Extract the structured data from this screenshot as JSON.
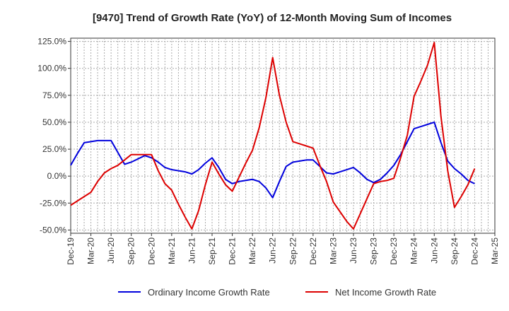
{
  "chart_data": {
    "type": "line",
    "title": "[9470]  Trend of Growth Rate (YoY) of 12-Month Moving Sum of Incomes",
    "xlabel": "",
    "ylabel": "",
    "ylim": [
      -0.53,
      1.28
    ],
    "y_ticks": [
      -0.5,
      -0.25,
      0.0,
      0.25,
      0.5,
      0.75,
      1.0,
      1.25
    ],
    "y_tick_labels": [
      "-50.0%",
      "-25.0%",
      "0.0%",
      "25.0%",
      "50.0%",
      "75.0%",
      "100.0%",
      "125.0%"
    ],
    "x_tick_labels": [
      "Dec-19",
      "Mar-20",
      "Jun-20",
      "Sep-20",
      "Dec-20",
      "Mar-21",
      "Jun-21",
      "Sep-21",
      "Dec-21",
      "Mar-22",
      "Jun-22",
      "Sep-22",
      "Dec-22",
      "Mar-23",
      "Jun-23",
      "Sep-23",
      "Dec-23",
      "Mar-24",
      "Jun-24",
      "Sep-24",
      "Dec-24",
      "Mar-25"
    ],
    "grid": true,
    "legend_position": "bottom",
    "x": [
      "2019-12",
      "2020-01",
      "2020-02",
      "2020-03",
      "2020-04",
      "2020-05",
      "2020-06",
      "2020-07",
      "2020-08",
      "2020-09",
      "2020-10",
      "2020-11",
      "2020-12",
      "2021-01",
      "2021-02",
      "2021-03",
      "2021-04",
      "2021-05",
      "2021-06",
      "2021-07",
      "2021-08",
      "2021-09",
      "2021-10",
      "2021-11",
      "2021-12",
      "2022-01",
      "2022-02",
      "2022-03",
      "2022-04",
      "2022-05",
      "2022-06",
      "2022-07",
      "2022-08",
      "2022-09",
      "2022-10",
      "2022-11",
      "2022-12",
      "2023-01",
      "2023-02",
      "2023-03",
      "2023-04",
      "2023-05",
      "2023-06",
      "2023-07",
      "2023-08",
      "2023-09",
      "2023-10",
      "2023-11",
      "2023-12",
      "2024-01",
      "2024-02",
      "2024-03",
      "2024-04",
      "2024-05",
      "2024-06",
      "2024-07",
      "2024-08",
      "2024-09",
      "2024-10",
      "2024-11",
      "2024-12"
    ],
    "series": [
      {
        "name": "Ordinary Income Growth Rate",
        "color": "#0000dd",
        "values": [
          0.1,
          0.21,
          0.31,
          0.32,
          0.33,
          0.33,
          0.33,
          0.22,
          0.11,
          0.13,
          0.16,
          0.19,
          0.17,
          0.13,
          0.08,
          0.06,
          0.05,
          0.04,
          0.02,
          0.06,
          0.12,
          0.17,
          0.08,
          -0.03,
          -0.07,
          -0.05,
          -0.04,
          -0.03,
          -0.05,
          -0.11,
          -0.2,
          -0.05,
          0.09,
          0.13,
          0.14,
          0.15,
          0.15,
          0.09,
          0.03,
          0.02,
          0.04,
          0.06,
          0.08,
          0.03,
          -0.03,
          -0.06,
          -0.03,
          0.03,
          0.1,
          0.2,
          0.32,
          0.44,
          0.46,
          0.48,
          0.5,
          0.31,
          0.14,
          0.07,
          0.02,
          -0.04,
          -0.07
        ]
      },
      {
        "name": "Net Income Growth Rate",
        "color": "#dd0000",
        "values": [
          -0.27,
          -0.23,
          -0.19,
          -0.15,
          -0.05,
          0.03,
          0.07,
          0.1,
          0.15,
          0.2,
          0.2,
          0.2,
          0.2,
          0.05,
          -0.07,
          -0.13,
          -0.26,
          -0.38,
          -0.49,
          -0.32,
          -0.08,
          0.13,
          0.02,
          -0.08,
          -0.14,
          -0.01,
          0.12,
          0.24,
          0.45,
          0.73,
          1.1,
          0.75,
          0.5,
          0.32,
          0.3,
          0.28,
          0.26,
          0.1,
          -0.05,
          -0.24,
          -0.33,
          -0.42,
          -0.49,
          -0.35,
          -0.21,
          -0.07,
          -0.05,
          -0.04,
          -0.02,
          0.17,
          0.38,
          0.74,
          0.88,
          1.03,
          1.24,
          0.55,
          0.05,
          -0.29,
          -0.19,
          -0.08,
          0.07
        ]
      }
    ]
  }
}
